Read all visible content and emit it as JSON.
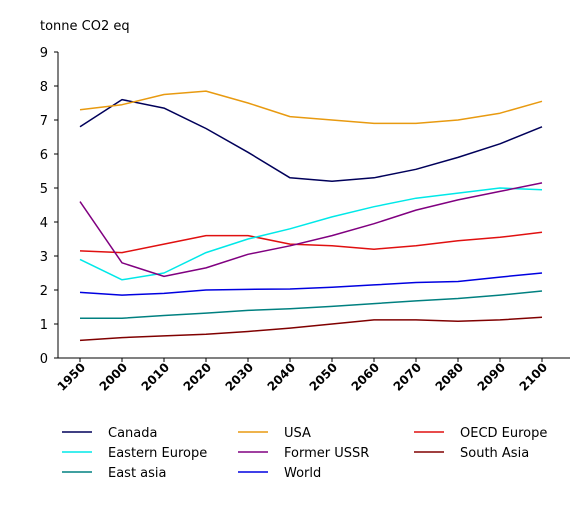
{
  "chart_data": {
    "type": "line",
    "title": "",
    "ylabel": "tonne CO2 eq",
    "xlabel": "",
    "ylim": [
      0,
      9
    ],
    "yticks": [
      "0",
      "1",
      "2",
      "3",
      "4",
      "5",
      "6",
      "7",
      "8",
      "9"
    ],
    "x": [
      "1950",
      "2000",
      "2010",
      "2020",
      "2030",
      "2040",
      "2050",
      "2060",
      "2070",
      "2080",
      "2090",
      "2100"
    ],
    "grid": false,
    "legend_position": "bottom",
    "series": [
      {
        "name": "Canada",
        "color": "#00005a",
        "values": [
          6.8,
          7.6,
          7.35,
          6.75,
          6.05,
          5.3,
          5.2,
          5.3,
          5.55,
          5.9,
          6.3,
          6.8
        ]
      },
      {
        "name": "USA",
        "color": "#e89a10",
        "values": [
          7.3,
          7.45,
          7.75,
          7.85,
          7.5,
          7.1,
          7.0,
          6.9,
          6.9,
          7.0,
          7.2,
          7.55
        ]
      },
      {
        "name": "OECD Europe",
        "color": "#e01010",
        "values": [
          3.15,
          3.1,
          3.35,
          3.6,
          3.6,
          3.35,
          3.3,
          3.2,
          3.3,
          3.45,
          3.55,
          3.7
        ]
      },
      {
        "name": "Eastern Europe",
        "color": "#00e8e8",
        "values": [
          2.9,
          2.3,
          2.5,
          3.1,
          3.5,
          3.8,
          4.15,
          4.45,
          4.7,
          4.85,
          5.0,
          4.95
        ]
      },
      {
        "name": "Former USSR",
        "color": "#800080",
        "values": [
          4.6,
          2.8,
          2.4,
          2.65,
          3.05,
          3.3,
          3.6,
          3.95,
          4.35,
          4.65,
          4.9,
          5.15
        ]
      },
      {
        "name": "South Asia",
        "color": "#800000",
        "values": [
          0.52,
          0.6,
          0.65,
          0.7,
          0.78,
          0.88,
          1.0,
          1.12,
          1.12,
          1.08,
          1.12,
          1.2
        ]
      },
      {
        "name": "East asia",
        "color": "#008080",
        "values": [
          1.17,
          1.17,
          1.25,
          1.32,
          1.4,
          1.45,
          1.52,
          1.6,
          1.68,
          1.75,
          1.85,
          1.97
        ]
      },
      {
        "name": "World",
        "color": "#0000e0",
        "values": [
          1.93,
          1.85,
          1.9,
          2.0,
          2.02,
          2.03,
          2.08,
          2.15,
          2.22,
          2.25,
          2.38,
          2.5
        ]
      }
    ]
  }
}
